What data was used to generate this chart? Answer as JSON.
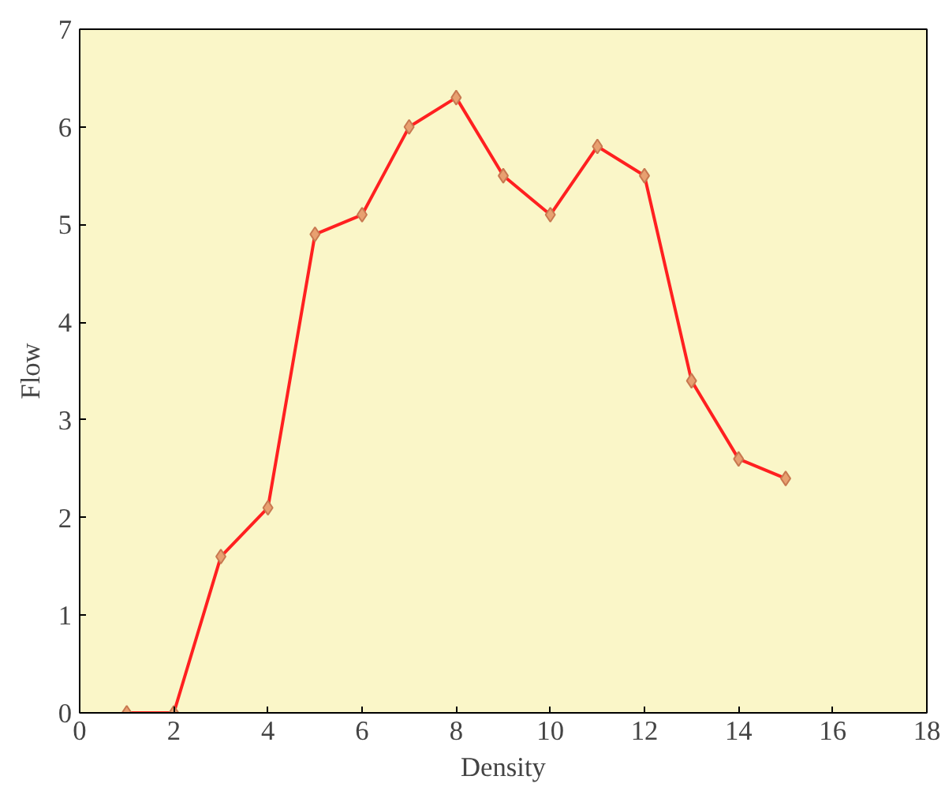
{
  "chart_data": {
    "type": "line",
    "xlabel": "Density",
    "ylabel": "Flow",
    "x": [
      1,
      2,
      3,
      4,
      5,
      6,
      7,
      8,
      9,
      10,
      11,
      12,
      13,
      14,
      15
    ],
    "series": [
      {
        "color": "#ff2020",
        "values": [
          0,
          0,
          1.6,
          2.1,
          4.9,
          5.1,
          6.0,
          6.3,
          5.5,
          5.1,
          5.8,
          5.5,
          3.4,
          2.6,
          2.4
        ]
      }
    ],
    "xlim": [
      0,
      18
    ],
    "ylim": [
      0,
      7
    ],
    "xticks": [
      0,
      2,
      4,
      6,
      8,
      10,
      12,
      14,
      16,
      18
    ],
    "yticks": [
      0,
      1,
      2,
      3,
      4,
      5,
      6,
      7
    ],
    "grid": false,
    "marker": "diamond",
    "line_style": "solid"
  }
}
